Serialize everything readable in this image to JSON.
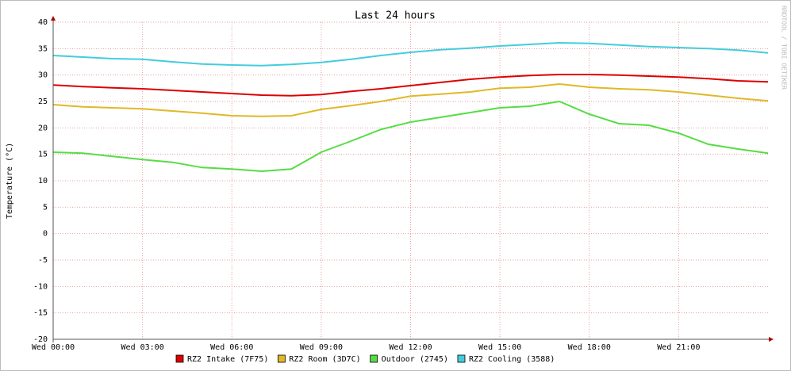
{
  "chart_data": {
    "type": "line",
    "title": "Last 24 hours",
    "y_label": "Temperature (°C)",
    "watermark": "RRDTOOL / TOBI OETIKER",
    "x": [
      0,
      1,
      2,
      3,
      4,
      5,
      6,
      7,
      8,
      9,
      10,
      11,
      12,
      13,
      14,
      15,
      16,
      17,
      18,
      19,
      20,
      21,
      22,
      23,
      24
    ],
    "xlim": [
      0,
      24
    ],
    "xticks": [
      {
        "value": 0,
        "label": "Wed 00:00"
      },
      {
        "value": 3,
        "label": "Wed 03:00"
      },
      {
        "value": 6,
        "label": "Wed 06:00"
      },
      {
        "value": 9,
        "label": "Wed 09:00"
      },
      {
        "value": 12,
        "label": "Wed 12:00"
      },
      {
        "value": 15,
        "label": "Wed 15:00"
      },
      {
        "value": 18,
        "label": "Wed 18:00"
      },
      {
        "value": 21,
        "label": "Wed 21:00"
      }
    ],
    "ylim": [
      -20,
      40
    ],
    "yticks": [
      -20,
      -15,
      -10,
      -5,
      0,
      5,
      10,
      15,
      20,
      25,
      30,
      35,
      40
    ],
    "grid": true,
    "series": [
      {
        "name": "RZ2 Intake (7F75)",
        "color": "#dd0000",
        "values": [
          28.1,
          27.8,
          27.6,
          27.4,
          27.1,
          26.8,
          26.5,
          26.2,
          26.1,
          26.3,
          26.9,
          27.4,
          28.0,
          28.6,
          29.2,
          29.6,
          29.9,
          30.1,
          30.1,
          30.0,
          29.8,
          29.6,
          29.3,
          28.9,
          28.7
        ]
      },
      {
        "name": "RZ2 Room (3D7C)",
        "color": "#e0b828",
        "values": [
          24.4,
          24.0,
          23.8,
          23.6,
          23.2,
          22.8,
          22.3,
          22.2,
          22.3,
          23.5,
          24.2,
          25.0,
          26.0,
          26.4,
          26.8,
          27.5,
          27.7,
          28.3,
          27.7,
          27.4,
          27.2,
          26.8,
          26.2,
          25.6,
          25.1
        ]
      },
      {
        "name": "Outdoor (2745)",
        "color": "#55dd44",
        "values": [
          15.4,
          15.2,
          14.6,
          14.0,
          13.5,
          12.5,
          12.2,
          11.8,
          12.2,
          15.4,
          17.5,
          19.7,
          21.1,
          22.0,
          22.9,
          23.8,
          24.1,
          25.0,
          22.6,
          20.8,
          20.5,
          19.0,
          16.9,
          16.0,
          15.2
        ]
      },
      {
        "name": "RZ2 Cooling (3588)",
        "color": "#44ccdd",
        "values": [
          33.7,
          33.4,
          33.1,
          33.0,
          32.5,
          32.1,
          31.9,
          31.8,
          32.0,
          32.4,
          33.0,
          33.7,
          34.3,
          34.8,
          35.1,
          35.5,
          35.8,
          36.1,
          36.0,
          35.7,
          35.4,
          35.2,
          35.0,
          34.7,
          34.2
        ]
      }
    ]
  }
}
